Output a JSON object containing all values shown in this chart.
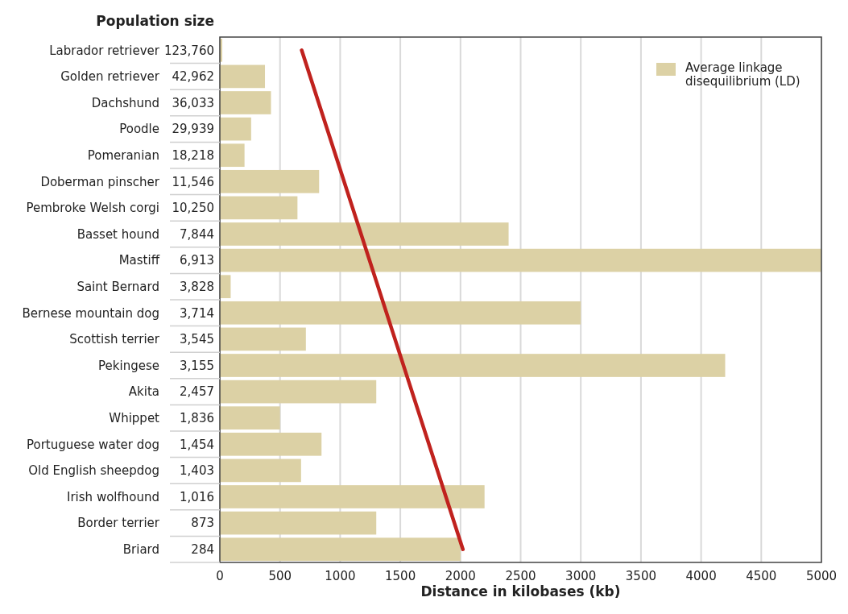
{
  "chart_data": {
    "type": "bar",
    "orientation": "horizontal",
    "ylabel": "Population size",
    "xlabel": "Distance in kilobases (kb)",
    "categories": [
      "Labrador retriever",
      "Golden retriever",
      "Dachshund",
      "Poodle",
      "Pomeranian",
      "Doberman pinscher",
      "Pembroke Welsh corgi",
      "Basset hound",
      "Mastiff",
      "Saint Bernard",
      "Bernese mountain dog",
      "Scottish terrier",
      "Pekingese",
      "Akita",
      "Whippet",
      "Portuguese water dog",
      "Old English sheepdog",
      "Irish wolfhound",
      "Border terrier",
      "Briard"
    ],
    "y2_categories": [
      "123,760",
      "42,962",
      "36,033",
      "29,939",
      "18,218",
      "11,546",
      "10,250",
      "7,844",
      "6,913",
      "3,828",
      "3,714",
      "3,545",
      "3,155",
      "2,457",
      "1,836",
      "1,454",
      "1,403",
      "1,016",
      "873",
      "284"
    ],
    "series": [
      {
        "name": "Average linkage disequilibrium (LD)",
        "color": "#dcd1a5",
        "values": [
          20,
          375,
          425,
          260,
          205,
          825,
          645,
          2400,
          5000,
          90,
          3000,
          715,
          4200,
          1300,
          500,
          845,
          675,
          2200,
          1300,
          2000
        ]
      },
      {
        "type": "line",
        "color": "#c0221e",
        "values": [
          680,
          null,
          null,
          null,
          null,
          null,
          null,
          null,
          null,
          null,
          null,
          null,
          null,
          null,
          null,
          null,
          null,
          null,
          null,
          2020
        ]
      }
    ],
    "xlim": [
      0,
      5000
    ],
    "xticks": [
      0,
      500,
      1000,
      1500,
      2000,
      2500,
      3000,
      3500,
      4000,
      4500,
      5000
    ],
    "grid": "x",
    "legend": "top right"
  }
}
